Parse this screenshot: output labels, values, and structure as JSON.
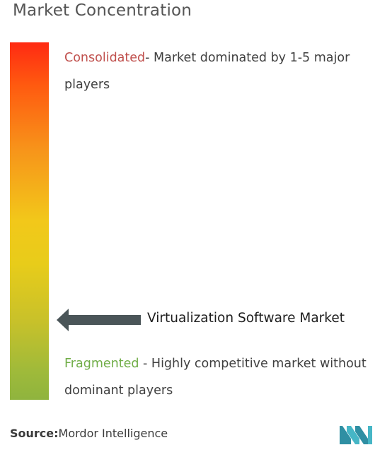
{
  "title": "Market Concentration",
  "consolidated": {
    "label": "Consolidated",
    "description": "- Market dominated by 1-5 major players"
  },
  "fragmented": {
    "label": "Fragmented",
    "description": " - Highly competitive market without dominant players"
  },
  "marker": {
    "label": "Virtualization Software Market",
    "level": 0.22
  },
  "source": {
    "label": "Source:",
    "name": "Mordor Intelligence"
  },
  "colors": {
    "consolidated_text": "#c0504d",
    "fragmented_text": "#70ad47",
    "gradient_top": "#ff2a12",
    "gradient_middle": "#f2c81a",
    "gradient_bottom": "#8fb43e",
    "arrow": "#4a5558",
    "logo": "#3aa6b8"
  },
  "icons": {
    "arrow": "left-arrow-icon",
    "logo": "mordor-intelligence-logo-icon"
  }
}
